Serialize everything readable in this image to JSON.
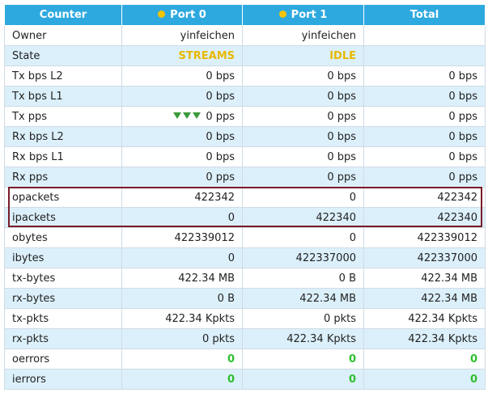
{
  "header": {
    "col_counter": "Counter",
    "col_port0": "Port 0",
    "col_port1": "Port 1",
    "col_total": "Total",
    "port_dot_color": "#f5c400"
  },
  "colors": {
    "header_bg": "#2ea9df",
    "alt_row_bg": "#dcf0fb",
    "state_color": "#e8b800",
    "green": "#2fbf2f",
    "highlight_border": "#7a1a2a"
  },
  "rows": [
    {
      "label": "Owner",
      "p0": "yinfeichen",
      "p1": "yinfeichen",
      "total": ""
    },
    {
      "label": "State",
      "p0": "STREAMS",
      "p1": "IDLE",
      "total": ""
    },
    {
      "label": "Tx bps L2",
      "p0": "0 bps",
      "p1": "0 bps",
      "total": "0 bps"
    },
    {
      "label": "Tx bps L1",
      "p0": "0 bps",
      "p1": "0 bps",
      "total": "0 bps"
    },
    {
      "label": "Tx pps",
      "p0": "0 pps",
      "p1": "0 pps",
      "total": "0 pps"
    },
    {
      "label": "Rx bps L2",
      "p0": "0 bps",
      "p1": "0 bps",
      "total": "0 bps"
    },
    {
      "label": "Rx bps L1",
      "p0": "0 bps",
      "p1": "0 bps",
      "total": "0 bps"
    },
    {
      "label": "Rx pps",
      "p0": "0 pps",
      "p1": "0 pps",
      "total": "0 pps"
    },
    {
      "label": "opackets",
      "p0": "422342",
      "p1": "0",
      "total": "422342"
    },
    {
      "label": "ipackets",
      "p0": "0",
      "p1": "422340",
      "total": "422340"
    },
    {
      "label": "obytes",
      "p0": "422339012",
      "p1": "0",
      "total": "422339012"
    },
    {
      "label": "ibytes",
      "p0": "0",
      "p1": "422337000",
      "total": "422337000"
    },
    {
      "label": "tx-bytes",
      "p0": "422.34 MB",
      "p1": "0 B",
      "total": "422.34 MB"
    },
    {
      "label": "rx-bytes",
      "p0": "0 B",
      "p1": "422.34 MB",
      "total": "422.34 MB"
    },
    {
      "label": "tx-pkts",
      "p0": "422.34 Kpkts",
      "p1": "0 pkts",
      "total": "422.34 Kpkts"
    },
    {
      "label": "rx-pkts",
      "p0": "0 pkts",
      "p1": "422.34 Kpkts",
      "total": "422.34 Kpkts"
    },
    {
      "label": "oerrors",
      "p0": "0",
      "p1": "0",
      "total": "0"
    },
    {
      "label": "ierrors",
      "p0": "0",
      "p1": "0",
      "total": "0"
    }
  ]
}
